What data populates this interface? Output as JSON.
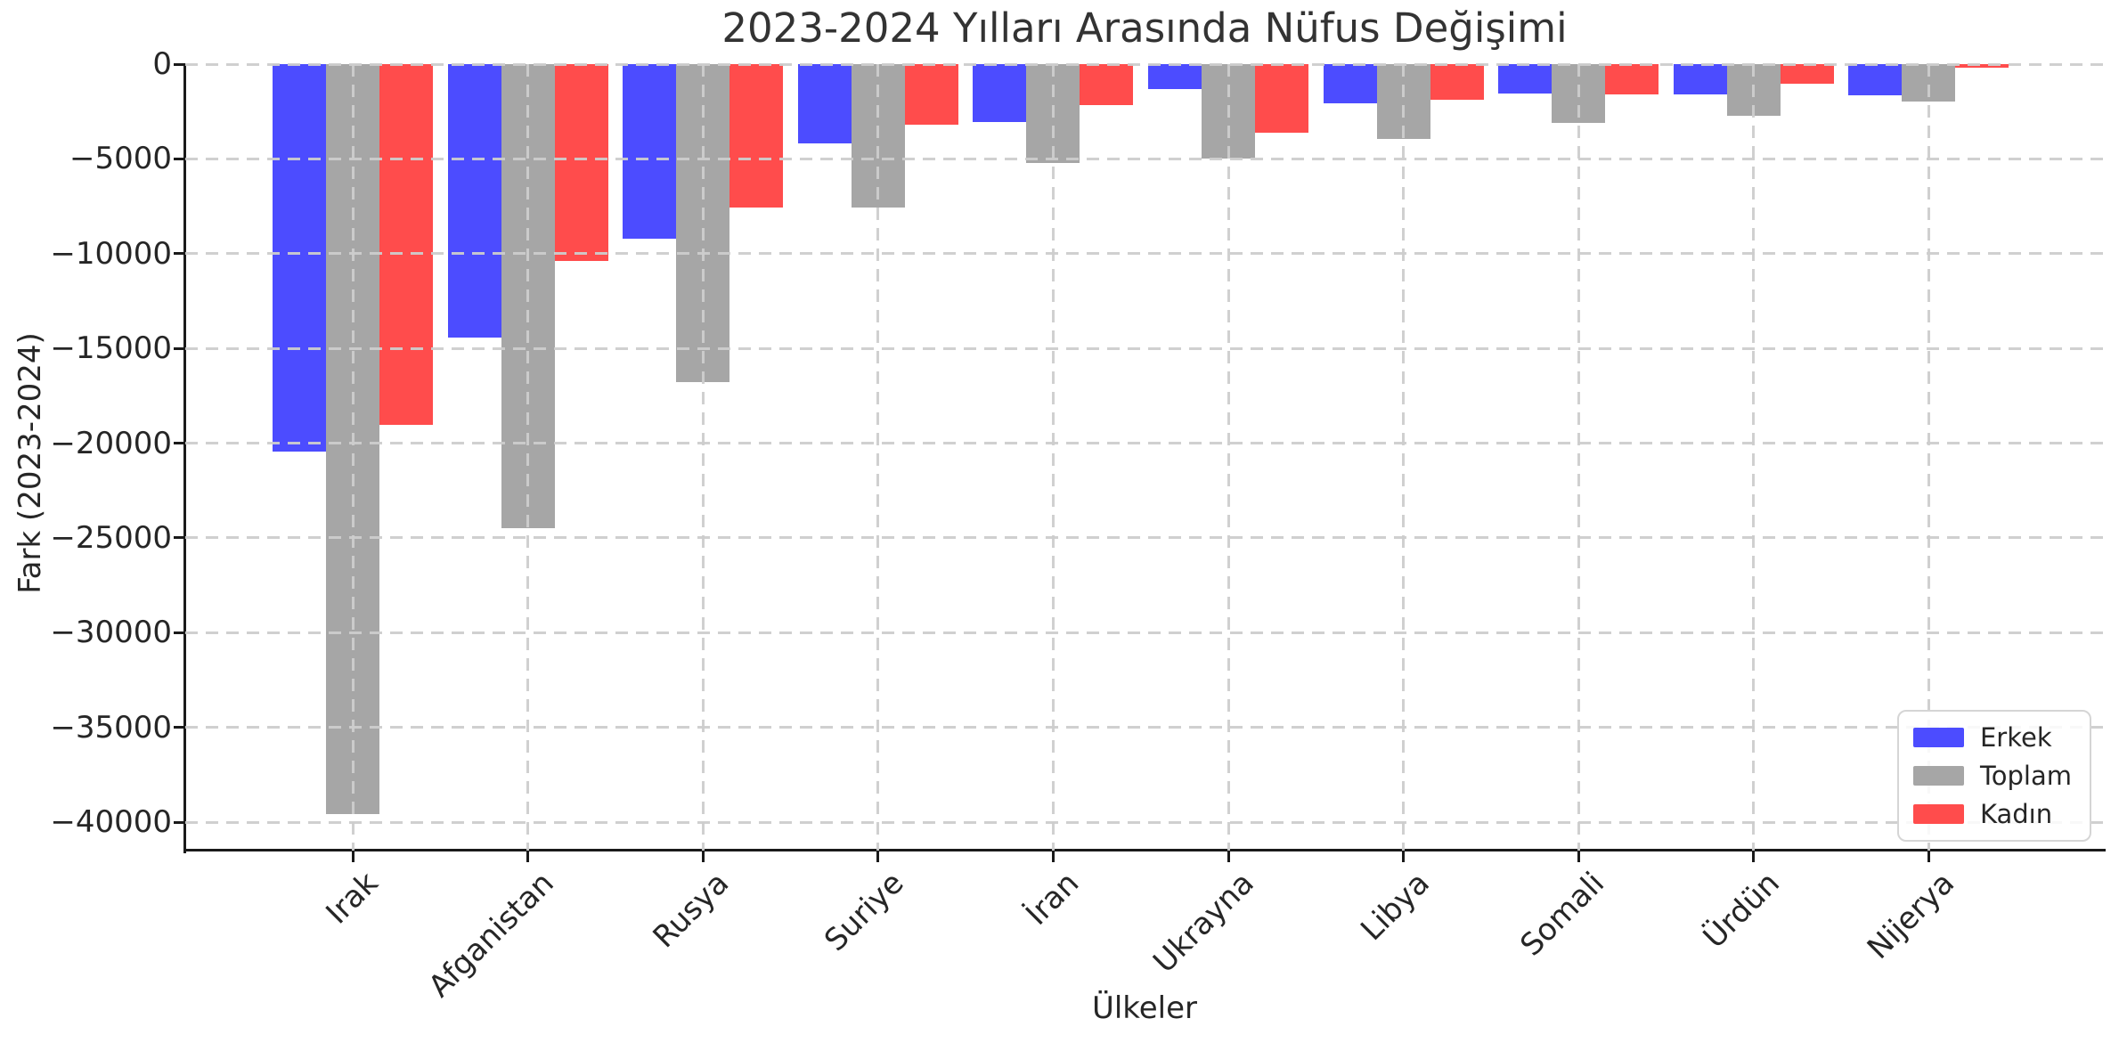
{
  "chart_data": {
    "type": "bar",
    "title": "2023-2024 Yılları Arasında Nüfus Değişimi",
    "xlabel": "Ülkeler",
    "ylabel": "Fark (2023-2024)",
    "categories": [
      "Irak",
      "Afganistan",
      "Rusya",
      "Suriye",
      "İran",
      "Ukrayna",
      "Libya",
      "Somali",
      "Ürdün",
      "Nijerya"
    ],
    "series": [
      {
        "name": "Erkek",
        "color": "#4C4CFF",
        "values": [
          -20460,
          -14440,
          -9190,
          -4190,
          -3040,
          -1320,
          -2080,
          -1530,
          -1600,
          -1620
        ]
      },
      {
        "name": "Toplam",
        "color": "#A6A6A6",
        "values": [
          -39550,
          -24470,
          -16780,
          -7550,
          -5200,
          -5000,
          -3950,
          -3120,
          -2730,
          -1970
        ]
      },
      {
        "name": "Kadın",
        "color": "#FF4C4C",
        "values": [
          -19050,
          -10390,
          -7580,
          -3200,
          -2150,
          -3640,
          -1870,
          -1600,
          -1040,
          -180
        ]
      }
    ],
    "ylim": [
      -41500,
      0
    ],
    "yticks": [
      0,
      -5000,
      -10000,
      -15000,
      -20000,
      -25000,
      -30000,
      -35000,
      -40000
    ],
    "ytick_labels": [
      "0",
      "−5000",
      "−10000",
      "−15000",
      "−20000",
      "−25000",
      "−30000",
      "−35000",
      "−40000"
    ],
    "grid": true,
    "grid_style": "dashed",
    "grid_color": "#cdcdcd",
    "legend_position": "lower right",
    "bar_orientation": "vertical"
  },
  "legend": {
    "items": [
      {
        "label": "Erkek",
        "color": "#4C4CFF"
      },
      {
        "label": "Toplam",
        "color": "#A6A6A6"
      },
      {
        "label": "Kadın",
        "color": "#FF4C4C"
      }
    ]
  },
  "colors": {
    "erkek_blue": "#4C4CFF",
    "toplam_gray": "#A6A6A6",
    "kadin_red": "#FF4C4C",
    "grid": "#cdcdcd",
    "spine": "#1a1a1a",
    "text": "#262626"
  }
}
